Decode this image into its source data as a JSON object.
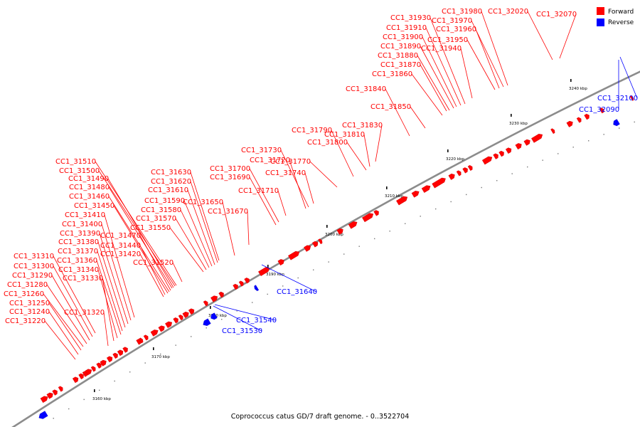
{
  "caption": "Coprococcus catus GD/7 draft genome. - 0..3522704",
  "legend": [
    {
      "name": "Forward",
      "color": "#ff0000"
    },
    {
      "name": "Reverse",
      "color": "#0000ff"
    }
  ],
  "ticks": [
    "3160 kbp",
    "3170 kbp",
    "3180 kbp",
    "3190 kbp",
    "3200 kbp",
    "3210 kbp",
    "3220 kbp",
    "3230 kbp",
    "3240 kbp"
  ],
  "forward_labels": [
    "CC1_31220",
    "CC1_31240",
    "CC1_31250",
    "CC1_31260",
    "CC1_31280",
    "CC1_31290",
    "CC1_31300",
    "CC1_31310",
    "CC1_31320",
    "CC1_31330",
    "CC1_31340",
    "CC1_31360",
    "CC1_31370",
    "CC1_31380",
    "CC1_31390",
    "CC1_31400",
    "CC1_31410",
    "CC1_31420",
    "CC1_31440",
    "CC1_31450",
    "CC1_31460",
    "CC1_31470",
    "CC1_31480",
    "CC1_31490",
    "CC1_31500",
    "CC1_31510",
    "CC1_31520",
    "CC1_31550",
    "CC1_31570",
    "CC1_31580",
    "CC1_31590",
    "CC1_31610",
    "CC1_31620",
    "CC1_31630",
    "CC1_31650",
    "CC1_31670",
    "CC1_31690",
    "CC1_31700",
    "CC1_31710",
    "CC1_31720",
    "CC1_31730",
    "CC1_31740",
    "CC1_31770",
    "CC1_31790",
    "CC1_31800",
    "CC1_31810",
    "CC1_31830",
    "CC1_31840",
    "CC1_31850",
    "CC1_31860",
    "CC1_31870",
    "CC1_31880",
    "CC1_31890",
    "CC1_31900",
    "CC1_31910",
    "CC1_31930",
    "CC1_31940",
    "CC1_31950",
    "CC1_31960",
    "CC1_31970",
    "CC1_31980",
    "CC1_32020",
    "CC1_32070"
  ],
  "reverse_labels": [
    "CC1_31530",
    "CC1_31540",
    "CC1_31640",
    "CC1_32090",
    "CC1_32100"
  ],
  "colors": {
    "forward": "#ff0000",
    "reverse": "#0000ff",
    "backbone": "#8c8c8c"
  }
}
